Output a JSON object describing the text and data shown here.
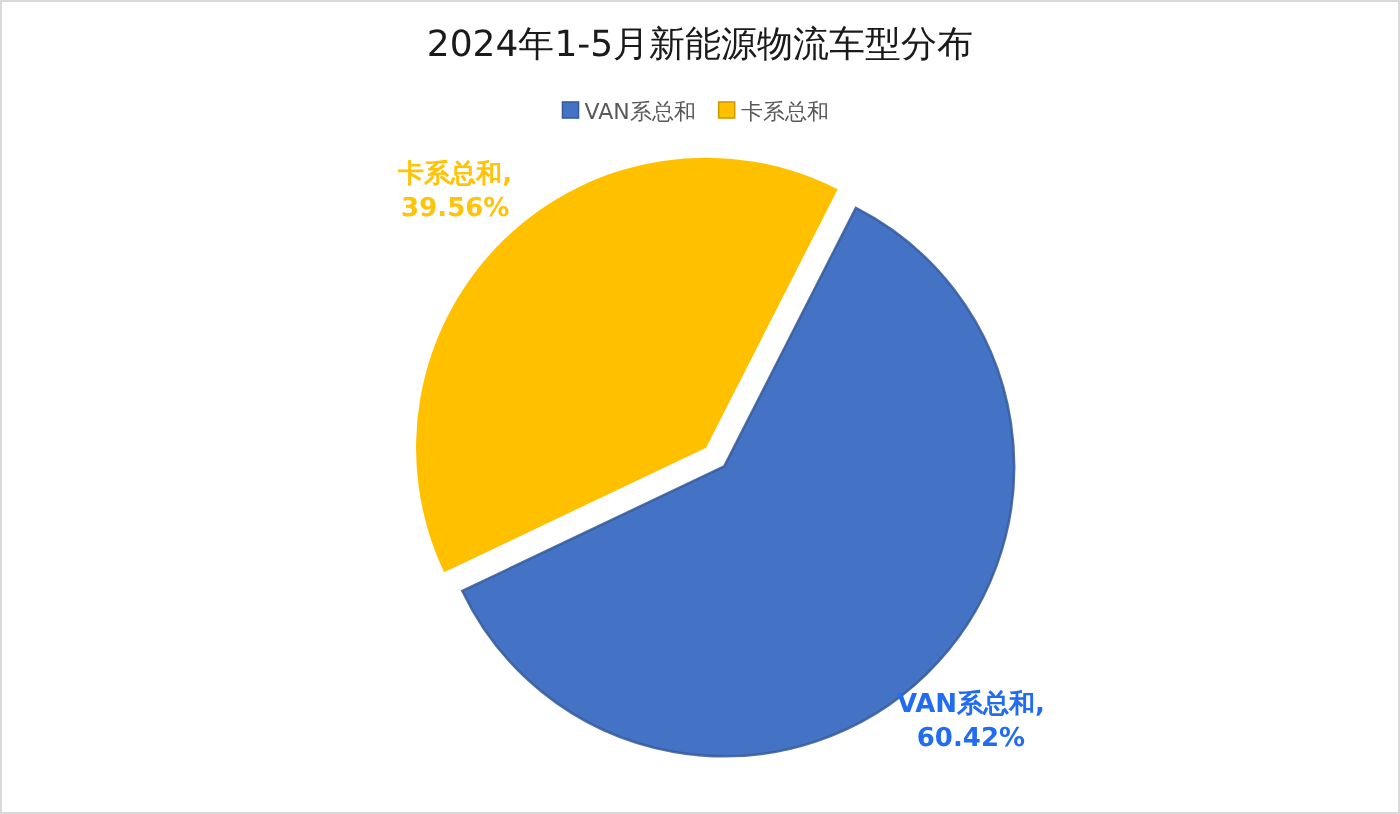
{
  "chart_data": {
    "type": "pie",
    "title": "2024年1-5月新能源物流车型分布",
    "categories": [
      "VAN系总和",
      "卡系总和"
    ],
    "values": [
      60.42,
      39.56
    ],
    "colors": [
      "#4472c4",
      "#ffc000"
    ],
    "legend": "top",
    "value_labels": [
      "VAN系总和,\n60.42%",
      "卡系总和,\n39.56%"
    ]
  }
}
